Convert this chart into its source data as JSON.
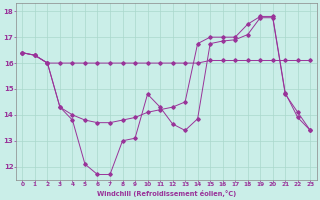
{
  "xlabel": "Windchill (Refroidissement éolien,°C)",
  "background_color": "#caeee8",
  "grid_color": "#aad8cc",
  "line_color": "#993399",
  "spine_color": "#888888",
  "xlim": [
    -0.5,
    23.5
  ],
  "ylim": [
    11.5,
    18.3
  ],
  "yticks": [
    12,
    13,
    14,
    15,
    16,
    17,
    18
  ],
  "xticks": [
    0,
    1,
    2,
    3,
    4,
    5,
    6,
    7,
    8,
    9,
    10,
    11,
    12,
    13,
    14,
    15,
    16,
    17,
    18,
    19,
    20,
    21,
    22,
    23
  ],
  "series1_x": [
    0,
    1,
    2,
    3,
    4,
    5,
    6,
    7,
    8,
    9,
    10,
    11,
    12,
    13,
    14,
    15,
    16,
    17,
    18,
    19,
    20,
    21,
    22,
    23
  ],
  "series1_y": [
    16.4,
    16.3,
    16.0,
    14.3,
    13.8,
    12.1,
    11.7,
    11.7,
    13.0,
    13.1,
    14.8,
    14.3,
    13.65,
    13.4,
    13.85,
    16.75,
    16.85,
    16.9,
    17.1,
    17.75,
    17.75,
    14.8,
    14.1,
    13.4
  ],
  "series2_x": [
    0,
    1,
    2,
    3,
    4,
    5,
    6,
    7,
    8,
    9,
    10,
    11,
    12,
    13,
    14,
    15,
    16,
    17,
    18,
    19,
    20,
    21,
    22,
    23
  ],
  "series2_y": [
    16.4,
    16.3,
    16.0,
    16.0,
    16.0,
    16.0,
    16.0,
    16.0,
    16.0,
    16.0,
    16.0,
    16.0,
    16.0,
    16.0,
    16.0,
    16.1,
    16.1,
    16.1,
    16.1,
    16.1,
    16.1,
    16.1,
    16.1,
    16.1
  ],
  "series3_x": [
    0,
    1,
    2,
    3,
    4,
    5,
    6,
    7,
    8,
    9,
    10,
    11,
    12,
    13,
    14,
    15,
    16,
    17,
    18,
    19,
    20,
    21,
    22,
    23
  ],
  "series3_y": [
    16.4,
    16.3,
    16.0,
    14.3,
    14.0,
    13.8,
    13.7,
    13.7,
    13.8,
    13.9,
    14.1,
    14.2,
    14.3,
    14.5,
    16.75,
    17.0,
    17.0,
    17.0,
    17.5,
    17.8,
    17.8,
    14.85,
    13.9,
    13.4
  ],
  "figsize": [
    3.2,
    2.0
  ],
  "dpi": 100
}
